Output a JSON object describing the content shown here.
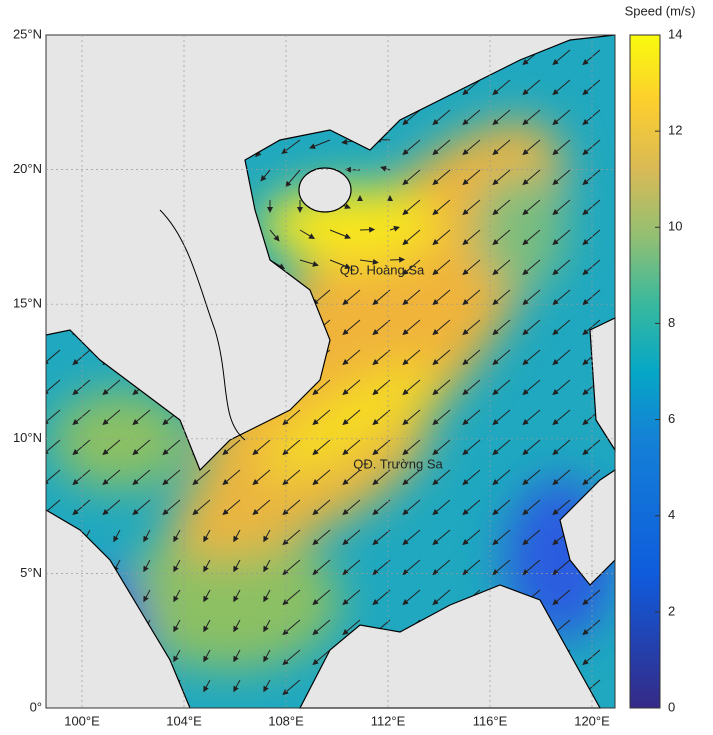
{
  "axes": {
    "lat_labels": [
      "25°N",
      "20°N",
      "15°N",
      "10°N",
      "5°N",
      "0°"
    ],
    "lon_labels": [
      "100°E",
      "104°E",
      "108°E",
      "112°E",
      "116°E",
      "120°E"
    ]
  },
  "colorbar": {
    "title": "Speed (m/s)",
    "ticks": [
      "0",
      "2",
      "4",
      "6",
      "8",
      "10",
      "12",
      "14"
    ]
  },
  "annotations": [
    "QĐ. Hoàng Sa",
    "QĐ. Trường Sa"
  ]
}
